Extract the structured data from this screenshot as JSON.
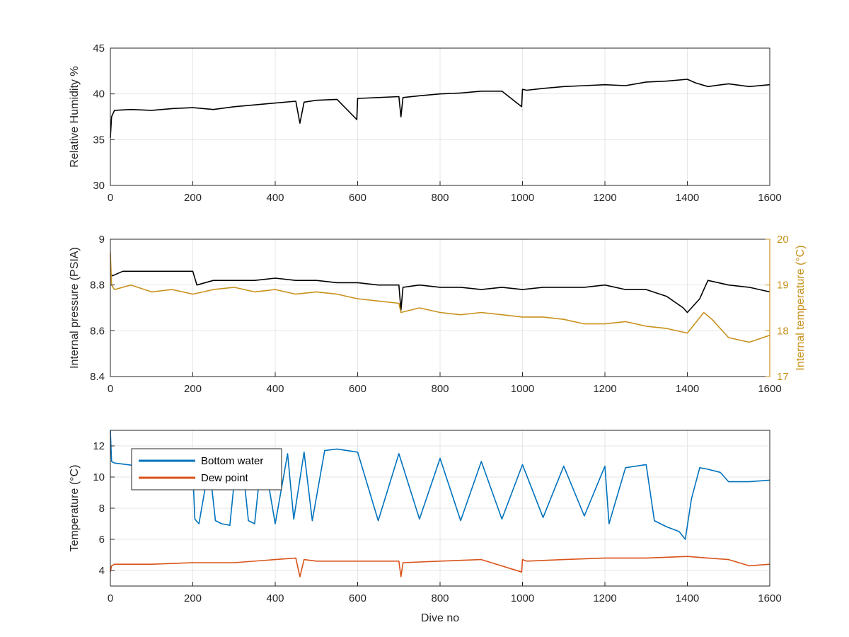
{
  "colors": {
    "black": "#000000",
    "temp_orange": "#C8911B",
    "bottom_blue": "#0072BD",
    "dew_orange": "#D95319",
    "grid": "#E6E6E6",
    "axis": "#262626"
  },
  "chart_data": [
    {
      "type": "line",
      "ylabel": "Relative Humidity %",
      "xlim": [
        0,
        1600
      ],
      "ylim": [
        30,
        45
      ],
      "x_ticks": [
        "0",
        "200",
        "400",
        "600",
        "800",
        "1000",
        "1200",
        "1400",
        "1600"
      ],
      "y_ticks": [
        "30",
        "35",
        "40",
        "45"
      ],
      "grid": true,
      "series": [
        {
          "color_key": "black",
          "x": [
            0,
            3,
            10,
            50,
            100,
            150,
            200,
            250,
            300,
            350,
            400,
            450,
            460,
            470,
            500,
            550,
            598,
            600,
            650,
            700,
            705,
            710,
            750,
            800,
            850,
            900,
            950,
            998,
            1000,
            1010,
            1050,
            1100,
            1150,
            1200,
            1250,
            1300,
            1350,
            1400,
            1420,
            1450,
            1500,
            1550,
            1600
          ],
          "y": [
            35.2,
            37.5,
            38.2,
            38.3,
            38.2,
            38.4,
            38.5,
            38.3,
            38.6,
            38.8,
            39.0,
            39.2,
            36.8,
            39.1,
            39.3,
            39.4,
            37.2,
            39.5,
            39.6,
            39.7,
            37.5,
            39.6,
            39.8,
            40.0,
            40.1,
            40.3,
            40.3,
            38.6,
            40.5,
            40.4,
            40.6,
            40.8,
            40.9,
            41.0,
            40.9,
            41.3,
            41.4,
            41.6,
            41.2,
            40.8,
            41.1,
            40.8,
            41.0
          ]
        }
      ]
    },
    {
      "type": "line",
      "ylabel": "Internal pressure (PSIA)",
      "y2label": "Internal temperature (°C)",
      "xlim": [
        0,
        1600
      ],
      "ylim": [
        8.4,
        9
      ],
      "y2lim": [
        17,
        20
      ],
      "x_ticks": [
        "0",
        "200",
        "400",
        "600",
        "800",
        "1000",
        "1200",
        "1400",
        "1600"
      ],
      "y_ticks": [
        "8.4",
        "8.6",
        "8.8",
        "9"
      ],
      "y2_ticks": [
        "17",
        "18",
        "19",
        "20"
      ],
      "grid": true,
      "series": [
        {
          "axis": "left",
          "color_key": "black",
          "x": [
            0,
            5,
            30,
            100,
            150,
            200,
            210,
            250,
            300,
            350,
            400,
            450,
            500,
            550,
            600,
            650,
            700,
            705,
            710,
            750,
            800,
            850,
            900,
            950,
            1000,
            1050,
            1100,
            1150,
            1200,
            1250,
            1300,
            1350,
            1390,
            1400,
            1430,
            1450,
            1500,
            1550,
            1600
          ],
          "y": [
            8.85,
            8.84,
            8.86,
            8.86,
            8.86,
            8.86,
            8.8,
            8.82,
            8.82,
            8.82,
            8.83,
            8.82,
            8.82,
            8.81,
            8.81,
            8.8,
            8.8,
            8.69,
            8.79,
            8.8,
            8.79,
            8.79,
            8.78,
            8.79,
            8.78,
            8.79,
            8.79,
            8.79,
            8.8,
            8.78,
            8.78,
            8.75,
            8.7,
            8.68,
            8.74,
            8.82,
            8.8,
            8.79,
            8.77
          ]
        },
        {
          "axis": "right",
          "color_key": "temp_orange",
          "x": [
            0,
            3,
            10,
            50,
            100,
            150,
            200,
            250,
            300,
            350,
            400,
            450,
            500,
            550,
            600,
            650,
            700,
            705,
            750,
            800,
            850,
            900,
            950,
            1000,
            1050,
            1100,
            1150,
            1200,
            1250,
            1300,
            1350,
            1400,
            1440,
            1460,
            1500,
            1550,
            1600
          ],
          "y": [
            19.7,
            19.0,
            18.9,
            19.0,
            18.85,
            18.9,
            18.8,
            18.9,
            18.95,
            18.85,
            18.9,
            18.8,
            18.85,
            18.8,
            18.7,
            18.65,
            18.6,
            18.4,
            18.5,
            18.4,
            18.35,
            18.4,
            18.35,
            18.3,
            18.3,
            18.25,
            18.15,
            18.15,
            18.2,
            18.1,
            18.05,
            17.95,
            18.4,
            18.25,
            17.85,
            17.75,
            17.9
          ]
        }
      ]
    },
    {
      "type": "line",
      "xlabel": "Dive no",
      "ylabel": "Temperature (°C)",
      "xlim": [
        0,
        1600
      ],
      "ylim": [
        3,
        13
      ],
      "x_ticks": [
        "0",
        "200",
        "400",
        "600",
        "800",
        "1000",
        "1200",
        "1400",
        "1600"
      ],
      "y_ticks": [
        "4",
        "6",
        "8",
        "10",
        "12"
      ],
      "grid": true,
      "legend_position": "top-left",
      "series": [
        {
          "name": "Bottom water",
          "color_key": "bottom_blue",
          "x": [
            0,
            3,
            10,
            100,
            200,
            205,
            215,
            240,
            255,
            270,
            290,
            305,
            320,
            335,
            350,
            365,
            375,
            400,
            430,
            445,
            470,
            490,
            520,
            550,
            600,
            650,
            700,
            750,
            800,
            850,
            900,
            950,
            1000,
            1050,
            1100,
            1150,
            1200,
            1210,
            1250,
            1300,
            1320,
            1350,
            1380,
            1395,
            1410,
            1430,
            1450,
            1480,
            1500,
            1550,
            1600
          ],
          "y": [
            13.0,
            11.0,
            10.9,
            10.6,
            10.4,
            7.3,
            7.0,
            10.8,
            7.2,
            7.0,
            6.9,
            10.9,
            11.0,
            7.2,
            7.0,
            10.8,
            10.9,
            7.0,
            11.5,
            7.3,
            11.6,
            7.2,
            11.7,
            11.8,
            11.6,
            7.2,
            11.5,
            7.3,
            11.2,
            7.2,
            11.0,
            7.3,
            10.8,
            7.4,
            10.7,
            7.5,
            10.7,
            7.0,
            10.6,
            10.8,
            7.2,
            6.8,
            6.5,
            6.0,
            8.6,
            10.6,
            10.5,
            10.3,
            9.7,
            9.7,
            9.8
          ]
        },
        {
          "name": "Dew point",
          "color_key": "dew_orange",
          "x": [
            0,
            3,
            10,
            100,
            200,
            300,
            400,
            450,
            460,
            470,
            500,
            600,
            700,
            705,
            710,
            800,
            900,
            998,
            1000,
            1010,
            1100,
            1200,
            1300,
            1400,
            1450,
            1500,
            1550,
            1600
          ],
          "y": [
            3.9,
            4.3,
            4.4,
            4.4,
            4.5,
            4.5,
            4.7,
            4.8,
            3.6,
            4.7,
            4.6,
            4.6,
            4.6,
            3.6,
            4.5,
            4.6,
            4.7,
            3.9,
            4.7,
            4.6,
            4.7,
            4.8,
            4.8,
            4.9,
            4.8,
            4.7,
            4.3,
            4.4
          ]
        }
      ]
    }
  ]
}
